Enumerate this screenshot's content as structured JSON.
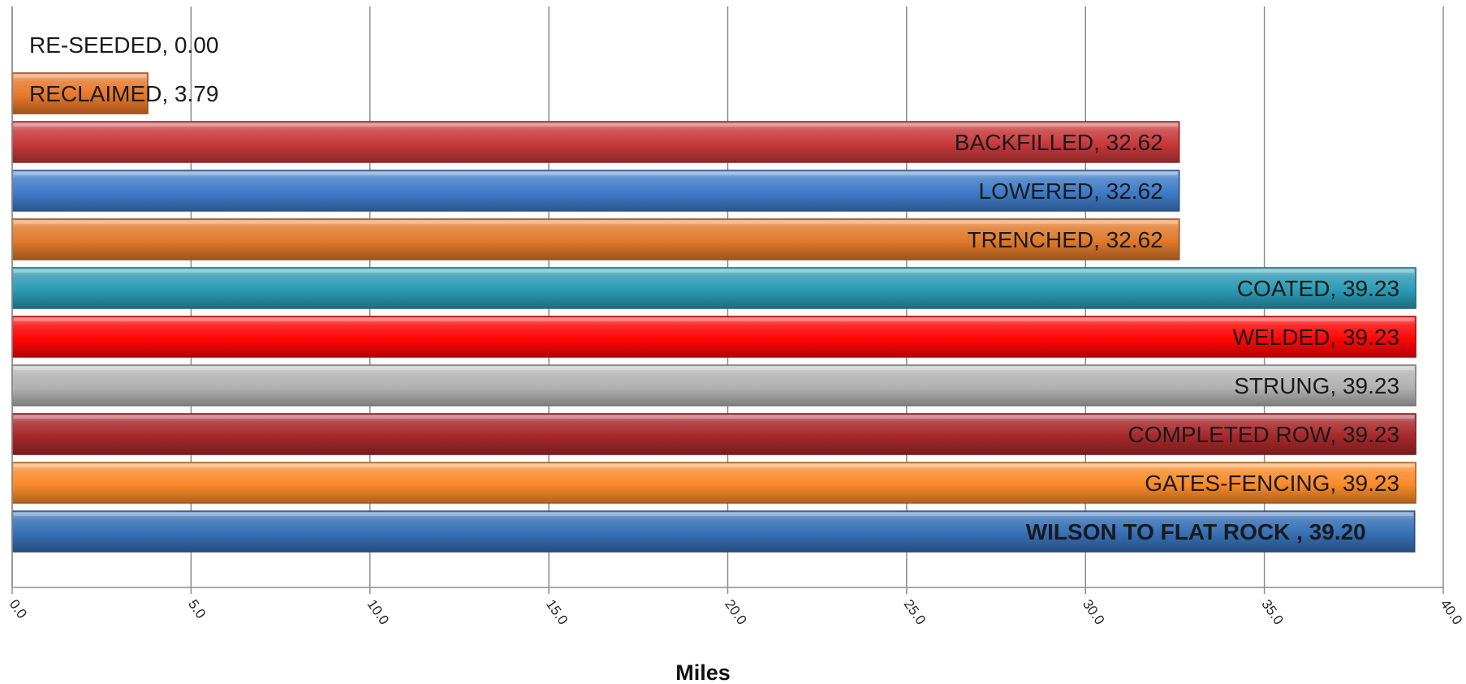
{
  "chart_data": {
    "type": "bar",
    "orientation": "horizontal",
    "xlabel": "Miles",
    "xlim": [
      0,
      40
    ],
    "x_ticks": [
      "0.0",
      "5.0",
      "10.0",
      "15.0",
      "20.0",
      "25.0",
      "30.0",
      "35.0",
      "40.0"
    ],
    "grid": "vertical",
    "legend": "none",
    "bars": [
      {
        "label": "RE-SEEDED, 0.00",
        "name": "RE-SEEDED",
        "value": 0.0,
        "color": "#E8782A",
        "bold": false
      },
      {
        "label": "RECLAIMED, 3.79",
        "name": "RECLAIMED",
        "value": 3.79,
        "color": "#E8782A",
        "bold": false
      },
      {
        "label": "BACKFILLED, 32.62",
        "name": "BACKFILLED",
        "value": 32.62,
        "color": "#C8393B",
        "bold": false
      },
      {
        "label": "LOWERED, 32.62",
        "name": "LOWERED",
        "value": 32.62,
        "color": "#3F7BC8",
        "bold": false
      },
      {
        "label": "TRENCHED, 32.62",
        "name": "TRENCHED",
        "value": 32.62,
        "color": "#E07A2A",
        "bold": false
      },
      {
        "label": "COATED, 39.23",
        "name": "COATED",
        "value": 39.23,
        "color": "#2C9BB5",
        "bold": false
      },
      {
        "label": "WELDED, 39.23",
        "name": "WELDED",
        "value": 39.23,
        "color": "#FF0606",
        "bold": false
      },
      {
        "label": "STRUNG, 39.23",
        "name": "STRUNG",
        "value": 39.23,
        "color": "#B2B2B2",
        "bold": false
      },
      {
        "label": "COMPLETED ROW, 39.23",
        "name": "COMPLETED ROW",
        "value": 39.23,
        "color": "#A8282A",
        "bold": false
      },
      {
        "label": "GATES-FENCING, 39.23",
        "name": "GATES-FENCING",
        "value": 39.23,
        "color": "#F98B2A",
        "bold": false
      },
      {
        "label": "WILSON TO FLAT ROCK , 39.20",
        "name": "WILSON TO FLAT ROCK",
        "value": 39.2,
        "color": "#3670B5",
        "bold": true
      }
    ]
  }
}
